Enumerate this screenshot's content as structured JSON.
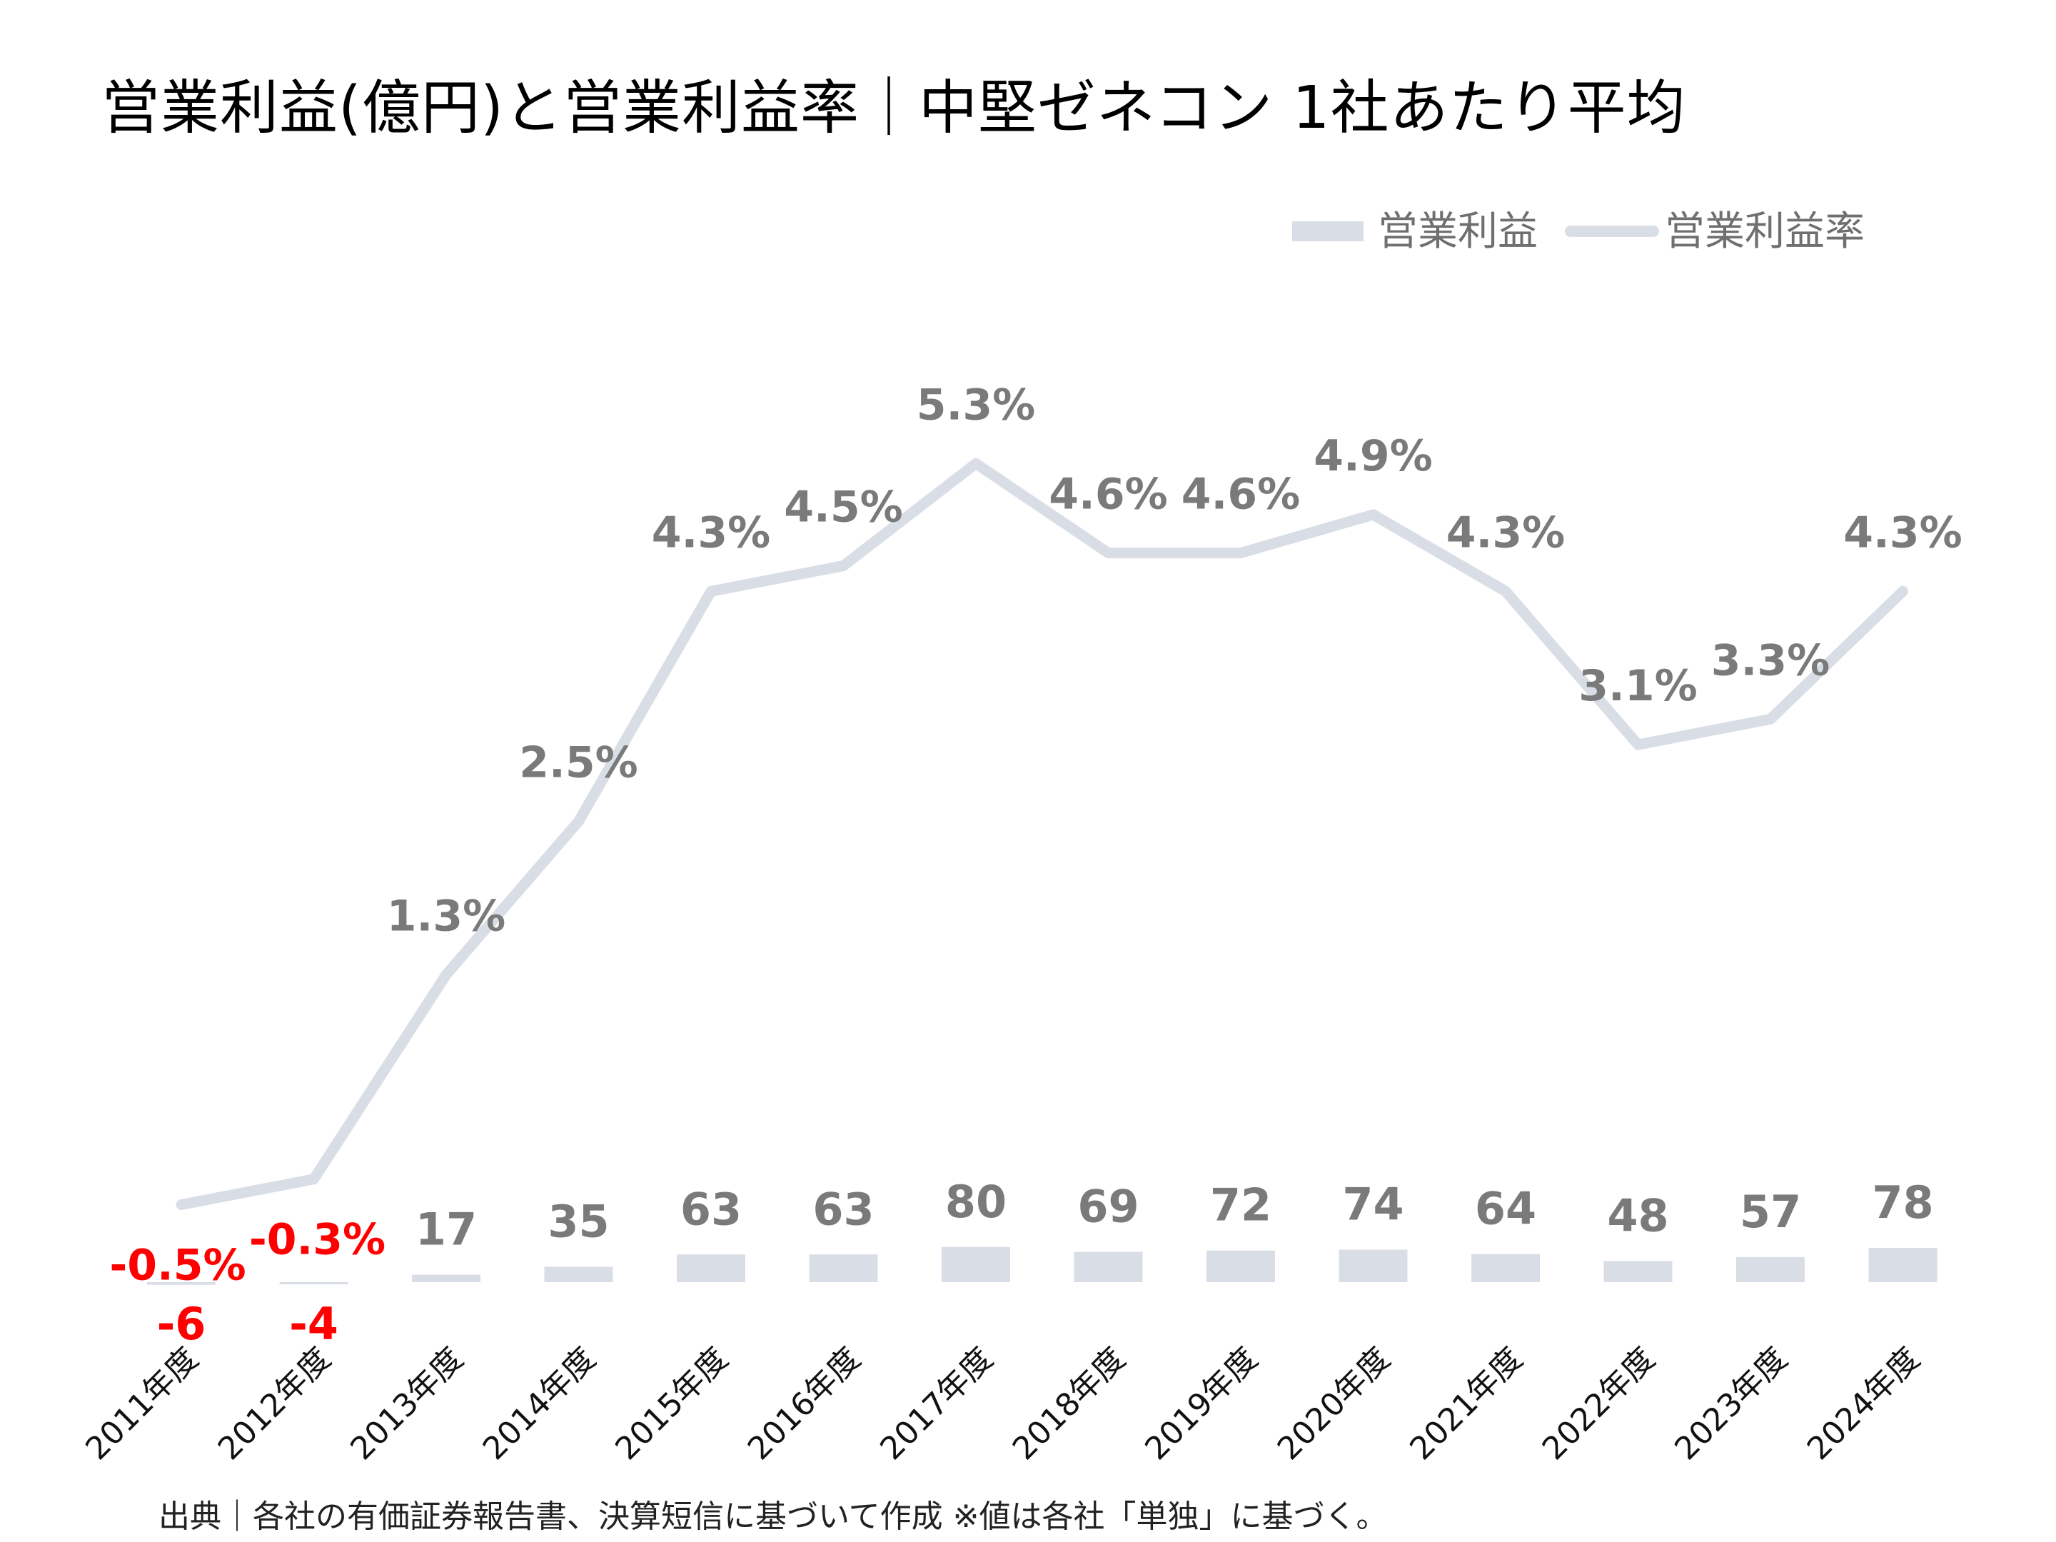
{
  "title": "営業利益(億円)と営業利益率｜中堅ゼネコン 1社あたり平均",
  "source_note": "出典｜各社の有価証券報告書、決算短信に基づいて作成  ※値は各社「単独」に基づく。",
  "colors": {
    "bar": "#d9dee6",
    "line": "#d9dee6",
    "label_positive": "#7a7a7a",
    "label_negative": "#ff0000"
  },
  "chart_data": {
    "type": "bar+line",
    "title": "営業利益(億円)と営業利益率｜中堅ゼネコン 1社あたり平均",
    "categories": [
      "2011年度",
      "2012年度",
      "2013年度",
      "2014年度",
      "2015年度",
      "2016年度",
      "2017年度",
      "2018年度",
      "2019年度",
      "2020年度",
      "2021年度",
      "2022年度",
      "2023年度",
      "2024年度"
    ],
    "series": [
      {
        "name": "営業利益",
        "type": "bar",
        "axis": "left",
        "values": [
          -6,
          -4,
          17,
          35,
          63,
          63,
          80,
          69,
          72,
          74,
          64,
          48,
          57,
          78
        ],
        "labels": [
          "-6",
          "-4",
          "17",
          "35",
          "63",
          "63",
          "80",
          "69",
          "72",
          "74",
          "64",
          "48",
          "57",
          "78"
        ]
      },
      {
        "name": "営業利益率",
        "type": "line",
        "axis": "right",
        "values": [
          -0.5,
          -0.3,
          1.3,
          2.5,
          4.3,
          4.5,
          5.3,
          4.6,
          4.6,
          4.9,
          4.3,
          3.1,
          3.3,
          4.3
        ],
        "labels": [
          "-0.5%",
          "-0.3%",
          "1.3%",
          "2.5%",
          "4.3%",
          "4.5%",
          "5.3%",
          "4.6%",
          "4.6%",
          "4.9%",
          "4.3%",
          "3.1%",
          "3.3%",
          "4.3%"
        ]
      }
    ],
    "legend": "top-right",
    "grid": false,
    "y_left_range": [
      -100,
      500
    ],
    "y_right_range": [
      -1,
      11
    ]
  }
}
